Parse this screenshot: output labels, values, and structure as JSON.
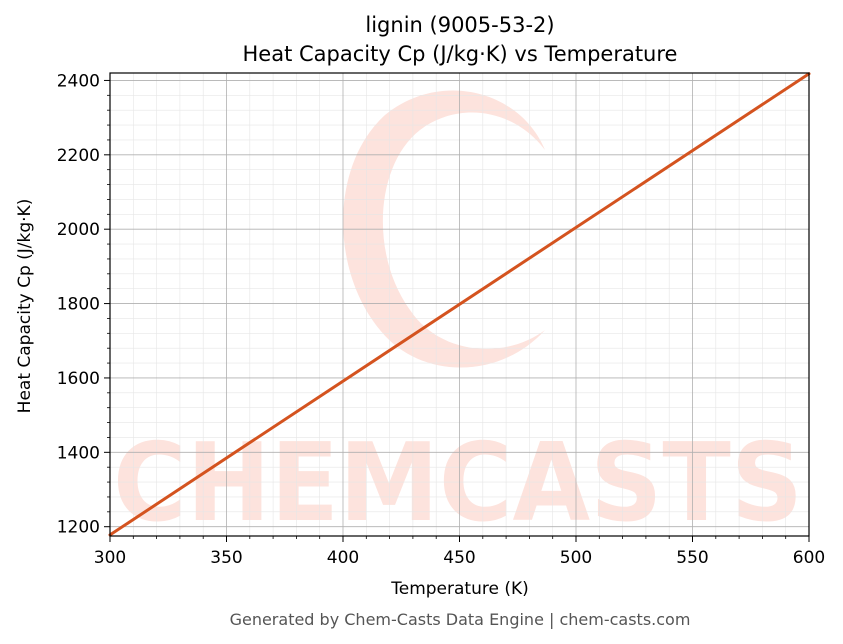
{
  "chart_data": {
    "type": "line",
    "title": "lignin (9005-53-2)",
    "subtitle": "Heat Capacity Cp (J/kg·K) vs Temperature",
    "xlabel": "Temperature (K)",
    "ylabel": "Heat Capacity Cp (J/kg·K)",
    "xlim": [
      300,
      600
    ],
    "ylim": [
      1175,
      2420
    ],
    "x_ticks": [
      300,
      350,
      400,
      450,
      500,
      550,
      600
    ],
    "y_ticks": [
      1200,
      1400,
      1600,
      1800,
      2000,
      2200,
      2400
    ],
    "grid": true,
    "series": [
      {
        "x": [
          300,
          600
        ],
        "y": [
          1178,
          2418
        ]
      }
    ],
    "colors": {
      "line": "#d4531f",
      "watermark": "#fde3dd",
      "grid_major": "#b0b0b0",
      "grid_minor": "#e6e6e6"
    }
  },
  "watermark": {
    "text": "CHEMCASTS"
  },
  "footer": "Generated by Chem-Casts Data Engine | chem-casts.com"
}
